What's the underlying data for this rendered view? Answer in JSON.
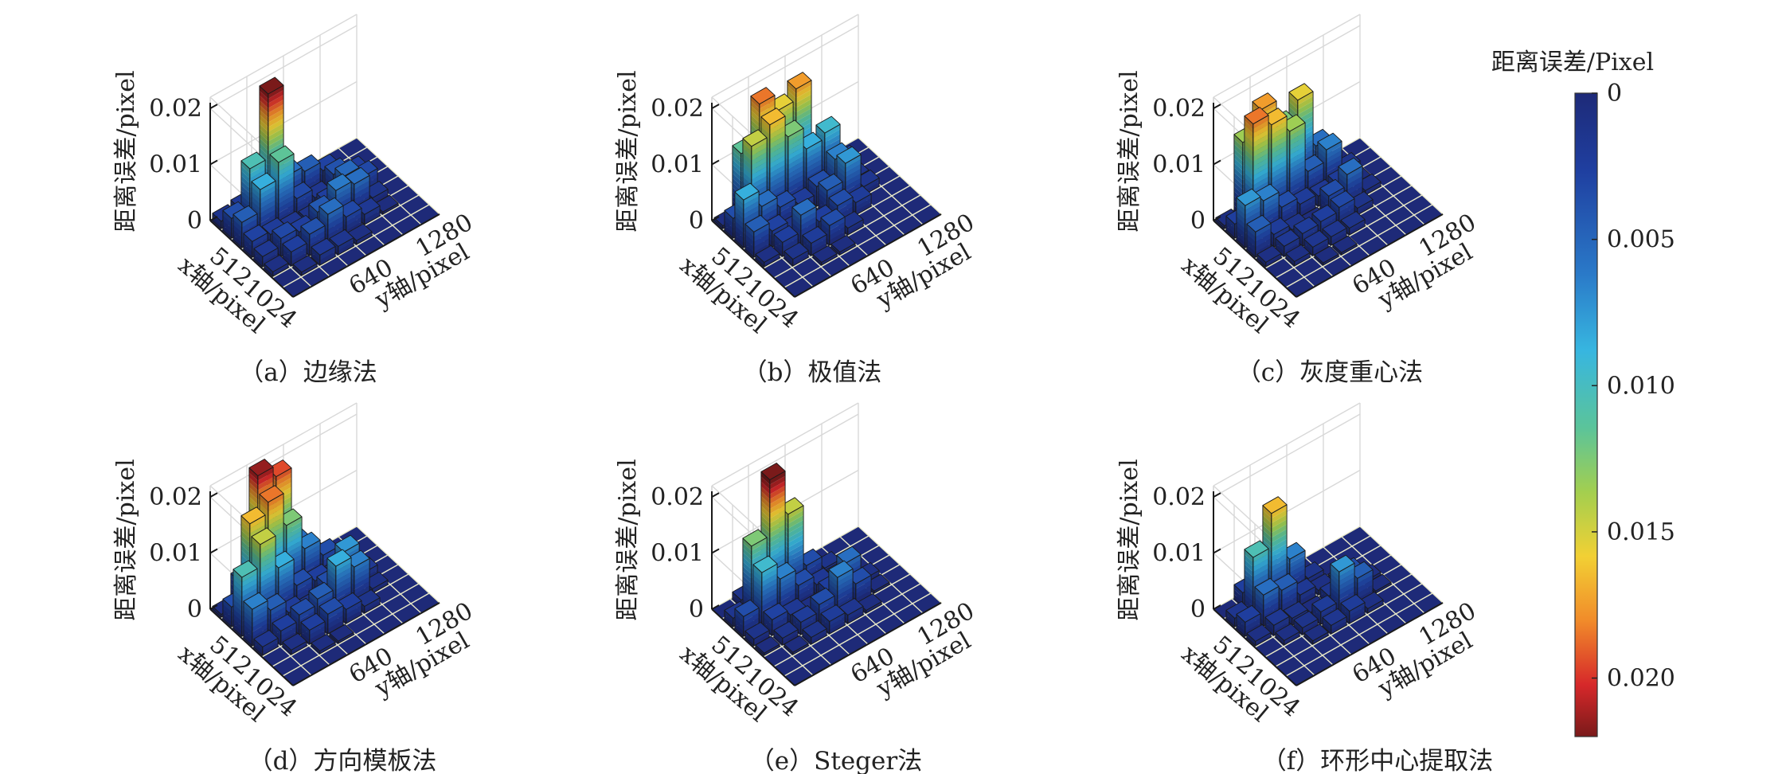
{
  "figure": {
    "colorbar": {
      "title": "距离误差/Pixel",
      "ticks": [
        "0",
        "0.005",
        "0.010",
        "0.015",
        "0.020"
      ],
      "tick_values": [
        0,
        0.005,
        0.01,
        0.015,
        0.02
      ],
      "range": [
        0,
        0.022
      ],
      "colormap": "jet",
      "direction": "0 at top, max at bottom"
    }
  },
  "chart_data": [
    {
      "type": "bar3d",
      "caption": "（a）边缘法",
      "zlabel": "距离误差/pixel",
      "xlabel": "x轴/pixel",
      "ylabel": "y轴/pixel",
      "zticks": [
        "0.02",
        "0.01",
        "0"
      ],
      "xticks": [
        "512",
        "1024"
      ],
      "yticks": [
        "640",
        "1280"
      ],
      "zlim": [
        0,
        0.022
      ],
      "grid": true,
      "x_categories": 8,
      "y_categories": 8,
      "heights": [
        [
          0.0013,
          0.0018,
          0.004,
          0.002,
          0.0002,
          0.0001,
          0,
          0
        ],
        [
          0.0035,
          0.0105,
          0.022,
          0.0055,
          0.0045,
          0.0028,
          0.0002,
          0
        ],
        [
          0.0045,
          0.0085,
          0.0115,
          0.0032,
          0.0015,
          0.0038,
          0.0023,
          0
        ],
        [
          0.0028,
          0.0022,
          0.0015,
          0.0012,
          0.0025,
          0.0052,
          0.0032,
          0
        ],
        [
          0.0018,
          0.0032,
          0.0025,
          0.0042,
          0.0062,
          0.0055,
          0.0012,
          0
        ],
        [
          0.0008,
          0.0025,
          0.0038,
          0.0055,
          0.0032,
          0.0018,
          0.0004,
          0
        ],
        [
          0.0002,
          0.0006,
          0.0018,
          0.0015,
          0.0007,
          0.0001,
          0,
          0
        ],
        [
          0,
          0,
          0,
          0,
          0,
          0,
          0,
          0
        ]
      ]
    },
    {
      "type": "bar3d",
      "caption": "（b）极值法",
      "zlabel": "距离误差/pixel",
      "xlabel": "x轴/pixel",
      "ylabel": "y轴/pixel",
      "zticks": [
        "0.02",
        "0.01",
        "0"
      ],
      "xticks": [
        "512",
        "1024"
      ],
      "yticks": [
        "640",
        "1280"
      ],
      "zlim": [
        0,
        0.022
      ],
      "grid": true,
      "x_categories": 8,
      "y_categories": 8,
      "heights": [
        [
          0.0005,
          0.0115,
          0.0185,
          0.0155,
          0.0175,
          0.0045,
          0.0002,
          0
        ],
        [
          0.0035,
          0.0145,
          0.0165,
          0.0125,
          0.0085,
          0.0095,
          0.0025,
          0
        ],
        [
          0.0085,
          0.0055,
          0.0035,
          0.0022,
          0.0035,
          0.0065,
          0.0012,
          0
        ],
        [
          0.0045,
          0.0028,
          0.0012,
          0.0004,
          0.0045,
          0.0075,
          0.0015,
          0
        ],
        [
          0.0008,
          0.0025,
          0.0055,
          0.0025,
          0.0035,
          0.0022,
          0.0002,
          0
        ],
        [
          0.0002,
          0.0012,
          0.0022,
          0.0035,
          0.0012,
          0.0002,
          0,
          0
        ],
        [
          0,
          0.0002,
          0.0005,
          0.0005,
          0,
          0,
          0,
          0
        ],
        [
          0,
          0,
          0,
          0,
          0,
          0,
          0,
          0
        ]
      ]
    },
    {
      "type": "bar3d",
      "caption": "（c）灰度重心法",
      "zlabel": "距离误差/pixel",
      "xlabel": "x轴/pixel",
      "ylabel": "y轴/pixel",
      "zticks": [
        "0.02",
        "0.01",
        "0"
      ],
      "xticks": [
        "512",
        "1024"
      ],
      "yticks": [
        "640",
        "1280"
      ],
      "zlim": [
        0,
        0.022
      ],
      "grid": true,
      "x_categories": 8,
      "y_categories": 8,
      "heights": [
        [
          0.0005,
          0.0135,
          0.0175,
          0.0125,
          0.0155,
          0.0055,
          0.0002,
          0
        ],
        [
          0.0025,
          0.0185,
          0.0165,
          0.0135,
          0.0045,
          0.0065,
          0.0012,
          0
        ],
        [
          0.0075,
          0.0065,
          0.0035,
          0.0022,
          0.0018,
          0.0022,
          0.0004,
          0
        ],
        [
          0.0045,
          0.0022,
          0.0012,
          0.0004,
          0.0035,
          0.0055,
          0.0008,
          0
        ],
        [
          0.0008,
          0.0018,
          0.0022,
          0.0025,
          0.0032,
          0.0012,
          0.0002,
          0
        ],
        [
          0.0002,
          0.0008,
          0.0015,
          0.0015,
          0.0012,
          0.0002,
          0,
          0
        ],
        [
          0,
          0.0002,
          0.0004,
          0.0004,
          0,
          0,
          0,
          0
        ],
        [
          0,
          0,
          0,
          0,
          0,
          0,
          0,
          0
        ]
      ]
    },
    {
      "type": "bar3d",
      "caption": "（d）方向模板法",
      "zlabel": "距离误差/pixel",
      "xlabel": "x轴/pixel",
      "ylabel": "y轴/pixel",
      "zticks": [
        "0.02",
        "0.01",
        "0"
      ],
      "xticks": [
        "512",
        "1024"
      ],
      "yticks": [
        "640",
        "1280"
      ],
      "zlim": [
        0,
        0.022
      ],
      "grid": true,
      "x_categories": 8,
      "y_categories": 8,
      "heights": [
        [
          0.0005,
          0.0045,
          0.0215,
          0.0195,
          0.0055,
          0.0012,
          0.0002,
          0
        ],
        [
          0.0035,
          0.0165,
          0.0185,
          0.0125,
          0.0065,
          0.0035,
          0.0004,
          0
        ],
        [
          0.0105,
          0.0145,
          0.0085,
          0.0035,
          0.0025,
          0.0018,
          0.0002,
          0
        ],
        [
          0.0065,
          0.0045,
          0.0022,
          0.0012,
          0.0035,
          0.0075,
          0.0018,
          0
        ],
        [
          0.0015,
          0.0025,
          0.0035,
          0.0045,
          0.0085,
          0.0065,
          0.0008,
          0
        ],
        [
          0.0002,
          0.0008,
          0.0025,
          0.0035,
          0.0025,
          0.0012,
          0,
          0
        ],
        [
          0,
          0.0002,
          0.0005,
          0.0004,
          0.0002,
          0,
          0,
          0
        ],
        [
          0,
          0,
          0,
          0,
          0,
          0,
          0,
          0
        ]
      ]
    },
    {
      "type": "bar3d",
      "caption": "（e）Steger法",
      "zlabel": "距离误差/pixel",
      "xlabel": "x轴/pixel",
      "ylabel": "y轴/pixel",
      "zticks": [
        "0.02",
        "0.01",
        "0"
      ],
      "xticks": [
        "512",
        "1024"
      ],
      "yticks": [
        "640",
        "1280"
      ],
      "zlim": [
        0,
        0.022
      ],
      "grid": true,
      "x_categories": 8,
      "y_categories": 8,
      "heights": [
        [
          0.0002,
          0.0012,
          0.0045,
          0.0035,
          0.0005,
          0.0001,
          0,
          0
        ],
        [
          0.0015,
          0.0125,
          0.0225,
          0.0145,
          0.0035,
          0.0012,
          0.0002,
          0
        ],
        [
          0.0035,
          0.0095,
          0.0065,
          0.0035,
          0.0018,
          0.0012,
          0.0002,
          0
        ],
        [
          0.0012,
          0.0028,
          0.0018,
          0.0008,
          0.0025,
          0.0055,
          0.0008,
          0
        ],
        [
          0.0004,
          0.0012,
          0.0022,
          0.0035,
          0.0065,
          0.0035,
          0.0004,
          0
        ],
        [
          0.0001,
          0.0004,
          0.0012,
          0.0022,
          0.0015,
          0.0005,
          0,
          0
        ],
        [
          0,
          0,
          0.0002,
          0.0002,
          0.0001,
          0,
          0,
          0
        ],
        [
          0,
          0,
          0,
          0,
          0,
          0,
          0,
          0
        ]
      ]
    },
    {
      "type": "bar3d",
      "caption": "（f）环形中心提取法",
      "zlabel": "距离误差/pixel",
      "xlabel": "x轴/pixel",
      "ylabel": "y轴/pixel",
      "zticks": [
        "0.02",
        "0.01",
        "0"
      ],
      "xticks": [
        "512",
        "1024"
      ],
      "yticks": [
        "640",
        "1280"
      ],
      "zlim": [
        0,
        0.022
      ],
      "grid": true,
      "x_categories": 8,
      "y_categories": 8,
      "heights": [
        [
          0.0001,
          0.0025,
          0.0055,
          0.0012,
          0.0002,
          0,
          0,
          0
        ],
        [
          0.0015,
          0.0105,
          0.0165,
          0.0065,
          0.0012,
          0.0002,
          0,
          0
        ],
        [
          0.0025,
          0.0055,
          0.0045,
          0.0018,
          0.0008,
          0.0004,
          0,
          0
        ],
        [
          0.0008,
          0.0018,
          0.0012,
          0.0004,
          0.0015,
          0.0035,
          0.0005,
          0
        ],
        [
          0.0002,
          0.0008,
          0.0012,
          0.0022,
          0.0075,
          0.0045,
          0.0004,
          0
        ],
        [
          0,
          0.0002,
          0.0006,
          0.0015,
          0.0022,
          0.0008,
          0,
          0
        ],
        [
          0,
          0,
          0.0001,
          0.0002,
          0.0002,
          0,
          0,
          0
        ],
        [
          0,
          0,
          0,
          0,
          0,
          0,
          0,
          0
        ]
      ]
    }
  ]
}
